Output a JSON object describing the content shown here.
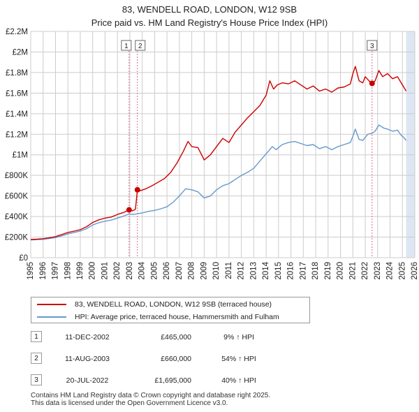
{
  "chart_data": {
    "type": "line",
    "title": "83, WENDELL ROAD, LONDON, W12 9SB",
    "subtitle": "Price paid vs. HM Land Registry's House Price Index (HPI)",
    "xlabel": "",
    "ylabel": "",
    "xlim": [
      1995,
      2026
    ],
    "ylim": [
      0,
      2200000
    ],
    "x_ticks": [
      1995,
      1996,
      1997,
      1998,
      1999,
      2000,
      2001,
      2002,
      2003,
      2004,
      2005,
      2006,
      2007,
      2008,
      2009,
      2010,
      2011,
      2012,
      2013,
      2014,
      2015,
      2016,
      2017,
      2018,
      2019,
      2020,
      2021,
      2022,
      2023,
      2024,
      2025,
      2026
    ],
    "y_ticks": [
      {
        "value": 0,
        "label": "£0"
      },
      {
        "value": 200000,
        "label": "£200K"
      },
      {
        "value": 400000,
        "label": "£400K"
      },
      {
        "value": 600000,
        "label": "£600K"
      },
      {
        "value": 800000,
        "label": "£800K"
      },
      {
        "value": 1000000,
        "label": "£1M"
      },
      {
        "value": 1200000,
        "label": "£1.2M"
      },
      {
        "value": 1400000,
        "label": "£1.4M"
      },
      {
        "value": 1600000,
        "label": "£1.6M"
      },
      {
        "value": 1800000,
        "label": "£1.8M"
      },
      {
        "value": 2000000,
        "label": "£2M"
      },
      {
        "value": 2200000,
        "label": "£2.2M"
      }
    ],
    "grid": true,
    "shaded_range": [
      2025.3,
      2026
    ],
    "series": [
      {
        "name": "83, WENDELL ROAD, LONDON, W12 9SB (terraced house)",
        "color": "#cc0000",
        "points": [
          [
            1995.0,
            178000
          ],
          [
            1995.5,
            180000
          ],
          [
            1996.0,
            185000
          ],
          [
            1996.5,
            193000
          ],
          [
            1997.0,
            205000
          ],
          [
            1997.5,
            225000
          ],
          [
            1998.0,
            245000
          ],
          [
            1998.5,
            258000
          ],
          [
            1999.0,
            272000
          ],
          [
            1999.5,
            300000
          ],
          [
            2000.0,
            342000
          ],
          [
            2000.5,
            368000
          ],
          [
            2001.0,
            385000
          ],
          [
            2001.5,
            395000
          ],
          [
            2002.0,
            420000
          ],
          [
            2002.5,
            440000
          ],
          [
            2002.94,
            465000
          ],
          [
            2003.2,
            455000
          ],
          [
            2003.45,
            470000
          ],
          [
            2003.61,
            660000
          ],
          [
            2003.8,
            650000
          ],
          [
            2004.3,
            670000
          ],
          [
            2004.8,
            700000
          ],
          [
            2005.3,
            735000
          ],
          [
            2005.8,
            770000
          ],
          [
            2006.3,
            830000
          ],
          [
            2006.8,
            920000
          ],
          [
            2007.3,
            1030000
          ],
          [
            2007.7,
            1130000
          ],
          [
            2008.0,
            1080000
          ],
          [
            2008.5,
            1070000
          ],
          [
            2009.0,
            950000
          ],
          [
            2009.5,
            1000000
          ],
          [
            2010.0,
            1080000
          ],
          [
            2010.5,
            1160000
          ],
          [
            2011.0,
            1120000
          ],
          [
            2011.5,
            1220000
          ],
          [
            2012.0,
            1290000
          ],
          [
            2012.5,
            1360000
          ],
          [
            2013.0,
            1420000
          ],
          [
            2013.5,
            1480000
          ],
          [
            2014.0,
            1580000
          ],
          [
            2014.3,
            1720000
          ],
          [
            2014.6,
            1640000
          ],
          [
            2014.9,
            1680000
          ],
          [
            2015.3,
            1700000
          ],
          [
            2015.8,
            1690000
          ],
          [
            2016.3,
            1720000
          ],
          [
            2016.8,
            1680000
          ],
          [
            2017.3,
            1640000
          ],
          [
            2017.8,
            1670000
          ],
          [
            2018.3,
            1620000
          ],
          [
            2018.8,
            1640000
          ],
          [
            2019.3,
            1610000
          ],
          [
            2019.8,
            1650000
          ],
          [
            2020.3,
            1660000
          ],
          [
            2020.8,
            1690000
          ],
          [
            2021.0,
            1790000
          ],
          [
            2021.2,
            1860000
          ],
          [
            2021.5,
            1720000
          ],
          [
            2021.8,
            1700000
          ],
          [
            2022.0,
            1760000
          ],
          [
            2022.3,
            1720000
          ],
          [
            2022.55,
            1695000
          ],
          [
            2022.8,
            1720000
          ],
          [
            2023.1,
            1820000
          ],
          [
            2023.4,
            1760000
          ],
          [
            2023.8,
            1790000
          ],
          [
            2024.2,
            1740000
          ],
          [
            2024.6,
            1760000
          ],
          [
            2024.9,
            1700000
          ],
          [
            2025.1,
            1660000
          ],
          [
            2025.3,
            1620000
          ]
        ]
      },
      {
        "name": "HPI: Average price, terraced house, Hammersmith and Fulham",
        "color": "#6699cc",
        "points": [
          [
            1995.0,
            172000
          ],
          [
            1995.5,
            175000
          ],
          [
            1996.0,
            178000
          ],
          [
            1996.5,
            186000
          ],
          [
            1997.0,
            195000
          ],
          [
            1997.5,
            212000
          ],
          [
            1998.0,
            230000
          ],
          [
            1998.5,
            245000
          ],
          [
            1999.0,
            258000
          ],
          [
            1999.5,
            282000
          ],
          [
            2000.0,
            318000
          ],
          [
            2000.5,
            340000
          ],
          [
            2001.0,
            355000
          ],
          [
            2001.5,
            365000
          ],
          [
            2002.0,
            385000
          ],
          [
            2002.5,
            405000
          ],
          [
            2002.94,
            425000
          ],
          [
            2003.3,
            420000
          ],
          [
            2003.61,
            428000
          ],
          [
            2004.0,
            435000
          ],
          [
            2004.5,
            450000
          ],
          [
            2005.0,
            460000
          ],
          [
            2005.5,
            475000
          ],
          [
            2006.0,
            495000
          ],
          [
            2006.5,
            540000
          ],
          [
            2007.0,
            600000
          ],
          [
            2007.5,
            670000
          ],
          [
            2008.0,
            660000
          ],
          [
            2008.5,
            640000
          ],
          [
            2009.0,
            580000
          ],
          [
            2009.5,
            600000
          ],
          [
            2010.0,
            660000
          ],
          [
            2010.5,
            700000
          ],
          [
            2011.0,
            720000
          ],
          [
            2011.5,
            760000
          ],
          [
            2012.0,
            800000
          ],
          [
            2012.5,
            830000
          ],
          [
            2013.0,
            870000
          ],
          [
            2013.5,
            940000
          ],
          [
            2014.0,
            1010000
          ],
          [
            2014.5,
            1080000
          ],
          [
            2014.8,
            1050000
          ],
          [
            2015.3,
            1100000
          ],
          [
            2015.8,
            1120000
          ],
          [
            2016.3,
            1130000
          ],
          [
            2016.8,
            1110000
          ],
          [
            2017.3,
            1090000
          ],
          [
            2017.8,
            1100000
          ],
          [
            2018.3,
            1060000
          ],
          [
            2018.8,
            1080000
          ],
          [
            2019.3,
            1050000
          ],
          [
            2019.8,
            1080000
          ],
          [
            2020.3,
            1100000
          ],
          [
            2020.8,
            1120000
          ],
          [
            2021.0,
            1180000
          ],
          [
            2021.2,
            1250000
          ],
          [
            2021.5,
            1150000
          ],
          [
            2021.8,
            1140000
          ],
          [
            2022.2,
            1200000
          ],
          [
            2022.55,
            1210000
          ],
          [
            2022.8,
            1230000
          ],
          [
            2023.1,
            1290000
          ],
          [
            2023.5,
            1260000
          ],
          [
            2023.8,
            1250000
          ],
          [
            2024.2,
            1230000
          ],
          [
            2024.6,
            1240000
          ],
          [
            2024.9,
            1190000
          ],
          [
            2025.1,
            1170000
          ],
          [
            2025.3,
            1140000
          ]
        ]
      }
    ],
    "markers": [
      {
        "label": "1",
        "x": 2002.94,
        "y": 465000
      },
      {
        "label": "2",
        "x": 2003.61,
        "y": 660000
      },
      {
        "label": "3",
        "x": 2022.55,
        "y": 1695000
      }
    ]
  },
  "legend": {
    "red_label": "83, WENDELL ROAD, LONDON, W12 9SB (terraced house)",
    "blue_label": "HPI: Average price, terraced house, Hammersmith and Fulham",
    "red_color": "#cc0000",
    "blue_color": "#6699cc"
  },
  "sales": [
    {
      "num": "1",
      "date": "11-DEC-2002",
      "price": "£465,000",
      "hpi": "9% ↑ HPI"
    },
    {
      "num": "2",
      "date": "11-AUG-2003",
      "price": "£660,000",
      "hpi": "54% ↑ HPI"
    },
    {
      "num": "3",
      "date": "20-JUL-2022",
      "price": "£1,695,000",
      "hpi": "40% ↑ HPI"
    }
  ],
  "footer": {
    "line1": "Contains HM Land Registry data © Crown copyright and database right 2025.",
    "line2": "This data is licensed under the Open Government Licence v3.0."
  }
}
